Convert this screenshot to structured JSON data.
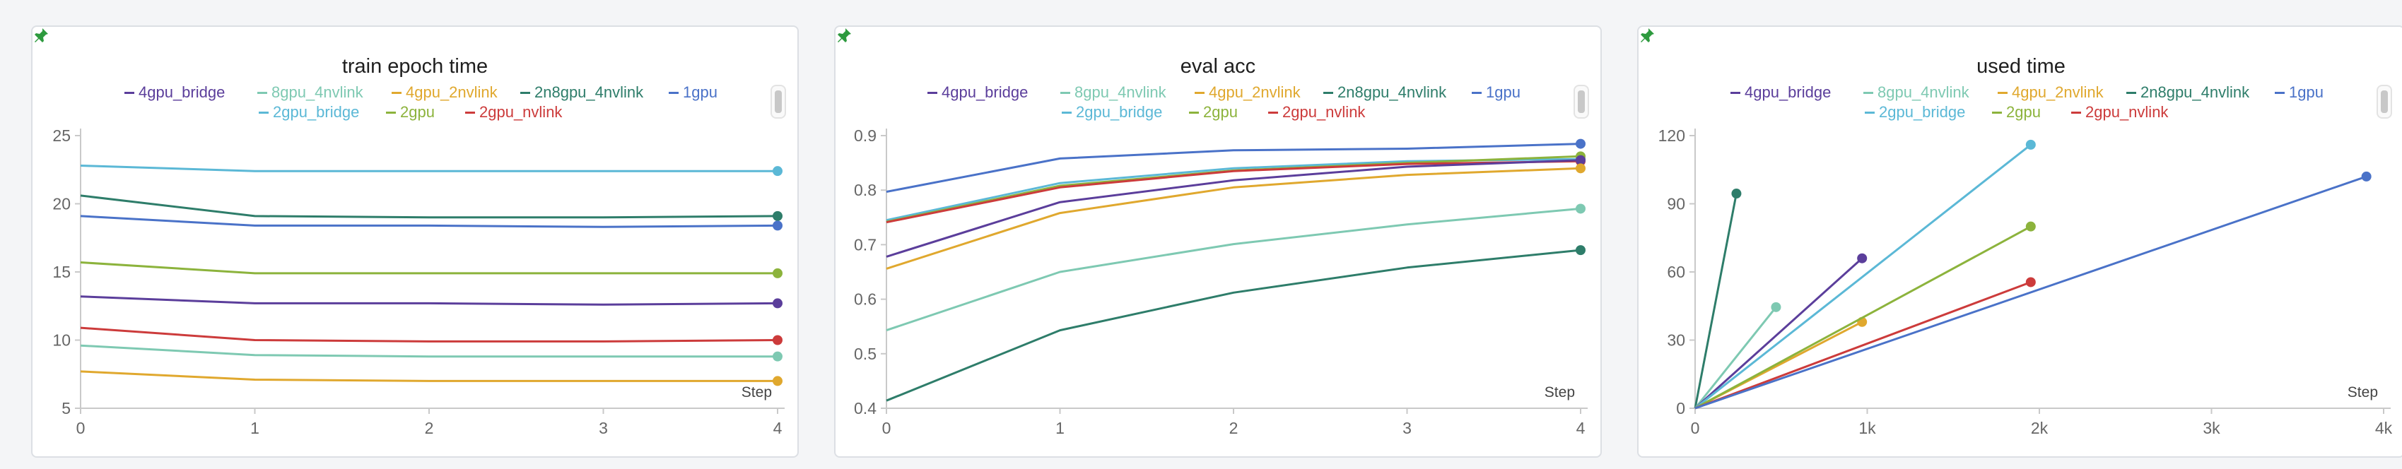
{
  "series_colors": {
    "4gpu_bridge": "#5b3e9b",
    "8gpu_4nvlink": "#7ec9b2",
    "4gpu_2nvlink": "#e0a82e",
    "2n8gpu_4nvlink": "#2e7d6a",
    "1gpu": "#4a72c8",
    "2gpu_bridge": "#5bb8d6",
    "2gpu": "#8cb33c",
    "2gpu_nvlink": "#cc3b3b"
  },
  "legend": {
    "row1": [
      "4gpu_bridge",
      "8gpu_4nvlink",
      "4gpu_2nvlink",
      "2n8gpu_4nvlink",
      "1gpu"
    ],
    "row2": [
      "2gpu_bridge",
      "2gpu",
      "2gpu_nvlink"
    ]
  },
  "chart_data": [
    {
      "type": "line",
      "title": "train epoch time",
      "xlabel": "Step",
      "ylabel": "",
      "xlim": [
        0,
        4
      ],
      "ylim": [
        5,
        25
      ],
      "xticks": [
        0,
        1,
        2,
        3,
        4
      ],
      "xtick_labels": [
        "0",
        "1",
        "2",
        "3",
        "4"
      ],
      "yticks": [
        5,
        10,
        15,
        20,
        25
      ],
      "ytick_labels": [
        "5",
        "10",
        "15",
        "20",
        "25"
      ],
      "grid": false,
      "legend_position": "top",
      "series": [
        {
          "name": "2gpu_bridge",
          "x": [
            0,
            1,
            2,
            3,
            4
          ],
          "y": [
            22.8,
            22.4,
            22.4,
            22.4,
            22.4
          ]
        },
        {
          "name": "2n8gpu_4nvlink",
          "x": [
            0,
            1,
            2,
            3,
            4
          ],
          "y": [
            20.6,
            19.1,
            19.0,
            19.0,
            19.1
          ]
        },
        {
          "name": "1gpu",
          "x": [
            0,
            1,
            2,
            3,
            4
          ],
          "y": [
            19.1,
            18.4,
            18.4,
            18.3,
            18.4
          ]
        },
        {
          "name": "2gpu",
          "x": [
            0,
            1,
            2,
            3,
            4
          ],
          "y": [
            15.7,
            14.9,
            14.9,
            14.9,
            14.9
          ]
        },
        {
          "name": "4gpu_bridge",
          "x": [
            0,
            1,
            2,
            3,
            4
          ],
          "y": [
            13.2,
            12.7,
            12.7,
            12.6,
            12.7
          ]
        },
        {
          "name": "2gpu_nvlink",
          "x": [
            0,
            1,
            2,
            3,
            4
          ],
          "y": [
            10.9,
            10.0,
            9.9,
            9.9,
            10.0
          ]
        },
        {
          "name": "8gpu_4nvlink",
          "x": [
            0,
            1,
            2,
            3,
            4
          ],
          "y": [
            9.6,
            8.9,
            8.8,
            8.8,
            8.8
          ]
        },
        {
          "name": "4gpu_2nvlink",
          "x": [
            0,
            1,
            2,
            3,
            4
          ],
          "y": [
            7.7,
            7.1,
            7.0,
            7.0,
            7.0
          ]
        }
      ]
    },
    {
      "type": "line",
      "title": "eval acc",
      "xlabel": "Step",
      "ylabel": "",
      "xlim": [
        0,
        4
      ],
      "ylim": [
        0.4,
        0.9
      ],
      "xticks": [
        0,
        1,
        2,
        3,
        4
      ],
      "xtick_labels": [
        "0",
        "1",
        "2",
        "3",
        "4"
      ],
      "yticks": [
        0.4,
        0.5,
        0.6,
        0.7,
        0.8,
        0.9
      ],
      "ytick_labels": [
        "0.4",
        "0.5",
        "0.6",
        "0.7",
        "0.8",
        "0.9"
      ],
      "grid": false,
      "legend_position": "top",
      "series": [
        {
          "name": "1gpu",
          "x": [
            0,
            1,
            2,
            3,
            4
          ],
          "y": [
            0.797,
            0.858,
            0.873,
            0.876,
            0.885
          ]
        },
        {
          "name": "2gpu_bridge",
          "x": [
            0,
            1,
            2,
            3,
            4
          ],
          "y": [
            0.745,
            0.813,
            0.84,
            0.853,
            0.857
          ]
        },
        {
          "name": "2gpu",
          "x": [
            0,
            1,
            2,
            3,
            4
          ],
          "y": [
            0.742,
            0.808,
            0.836,
            0.85,
            0.862
          ]
        },
        {
          "name": "2gpu_nvlink",
          "x": [
            0,
            1,
            2,
            3,
            4
          ],
          "y": [
            0.741,
            0.805,
            0.835,
            0.848,
            0.853
          ]
        },
        {
          "name": "4gpu_bridge",
          "x": [
            0,
            1,
            2,
            3,
            4
          ],
          "y": [
            0.678,
            0.778,
            0.818,
            0.843,
            0.855
          ]
        },
        {
          "name": "4gpu_2nvlink",
          "x": [
            0,
            1,
            2,
            3,
            4
          ],
          "y": [
            0.656,
            0.758,
            0.805,
            0.828,
            0.84
          ]
        },
        {
          "name": "8gpu_4nvlink",
          "x": [
            0,
            1,
            2,
            3,
            4
          ],
          "y": [
            0.543,
            0.65,
            0.701,
            0.737,
            0.766
          ]
        },
        {
          "name": "2n8gpu_4nvlink",
          "x": [
            0,
            1,
            2,
            3,
            4
          ],
          "y": [
            0.414,
            0.543,
            0.612,
            0.658,
            0.69
          ]
        }
      ]
    },
    {
      "type": "line",
      "title": "used time",
      "xlabel": "Step",
      "ylabel": "",
      "xlim": [
        0,
        4000
      ],
      "ylim": [
        0,
        120
      ],
      "xticks": [
        0,
        1000,
        2000,
        3000,
        4000
      ],
      "xtick_labels": [
        "0",
        "1k",
        "2k",
        "3k",
        "4k"
      ],
      "yticks": [
        0,
        30,
        60,
        90,
        120
      ],
      "ytick_labels": [
        "0",
        "30",
        "60",
        "90",
        "120"
      ],
      "grid": false,
      "legend_position": "top",
      "series": [
        {
          "name": "2n8gpu_4nvlink",
          "x": [
            0,
            240
          ],
          "y": [
            0,
            94.5
          ]
        },
        {
          "name": "8gpu_4nvlink",
          "x": [
            0,
            470
          ],
          "y": [
            0,
            44.5
          ]
        },
        {
          "name": "4gpu_bridge",
          "x": [
            0,
            970
          ],
          "y": [
            0,
            66
          ]
        },
        {
          "name": "4gpu_2nvlink",
          "x": [
            0,
            970
          ],
          "y": [
            0,
            38
          ]
        },
        {
          "name": "2gpu_bridge",
          "x": [
            0,
            1950
          ],
          "y": [
            0,
            116
          ]
        },
        {
          "name": "2gpu",
          "x": [
            0,
            1950
          ],
          "y": [
            0,
            80
          ]
        },
        {
          "name": "2gpu_nvlink",
          "x": [
            0,
            1950
          ],
          "y": [
            0,
            55.5
          ]
        },
        {
          "name": "1gpu",
          "x": [
            0,
            3900
          ],
          "y": [
            0,
            102
          ]
        }
      ]
    }
  ]
}
